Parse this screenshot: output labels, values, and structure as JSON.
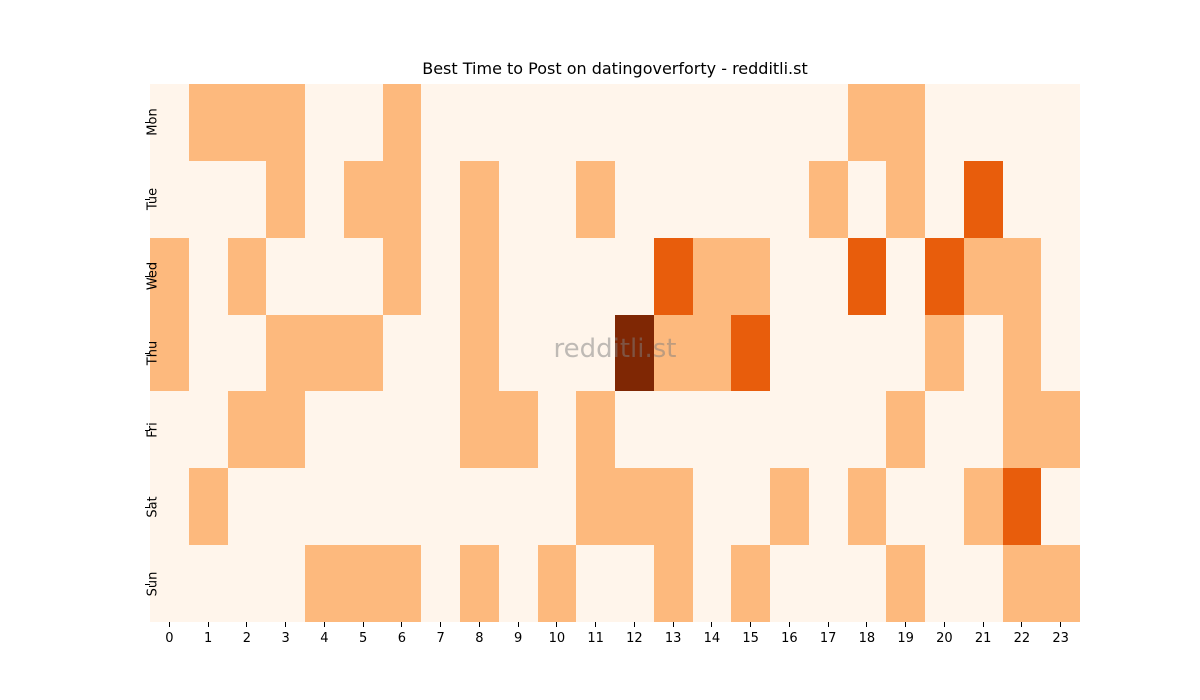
{
  "chart_data": {
    "type": "heatmap",
    "title": "Best Time to Post on datingoverforty - redditli.st",
    "xlabel": "",
    "ylabel": "",
    "x": [
      "0",
      "1",
      "2",
      "3",
      "4",
      "5",
      "6",
      "7",
      "8",
      "9",
      "10",
      "11",
      "12",
      "13",
      "14",
      "15",
      "16",
      "17",
      "18",
      "19",
      "20",
      "21",
      "22",
      "23"
    ],
    "y": [
      "Mon",
      "Tue",
      "Wed",
      "Thu",
      "Fri",
      "Sat",
      "Sun"
    ],
    "colormap": "Oranges",
    "levels": {
      "0": "#fff5eb",
      "1": "#fdb97d",
      "2": "#e85d0c",
      "3": "#7f2704"
    },
    "values": [
      [
        0,
        1,
        1,
        1,
        0,
        0,
        1,
        0,
        0,
        0,
        0,
        0,
        0,
        0,
        0,
        0,
        0,
        0,
        1,
        1,
        0,
        0,
        0,
        0
      ],
      [
        0,
        0,
        0,
        1,
        0,
        1,
        1,
        0,
        1,
        0,
        0,
        1,
        0,
        0,
        0,
        0,
        0,
        1,
        0,
        1,
        0,
        2,
        0,
        0
      ],
      [
        1,
        0,
        1,
        0,
        0,
        0,
        1,
        0,
        1,
        0,
        0,
        0,
        0,
        2,
        1,
        1,
        0,
        0,
        2,
        0,
        2,
        1,
        1,
        0
      ],
      [
        1,
        0,
        0,
        1,
        1,
        1,
        0,
        0,
        1,
        0,
        0,
        0,
        3,
        1,
        1,
        2,
        0,
        0,
        0,
        0,
        1,
        0,
        1,
        0
      ],
      [
        0,
        0,
        1,
        1,
        0,
        0,
        0,
        0,
        1,
        1,
        0,
        1,
        0,
        0,
        0,
        0,
        0,
        0,
        0,
        1,
        0,
        0,
        1,
        1
      ],
      [
        0,
        1,
        0,
        0,
        0,
        0,
        0,
        0,
        0,
        0,
        0,
        1,
        1,
        1,
        0,
        0,
        1,
        0,
        1,
        0,
        0,
        1,
        2,
        0
      ],
      [
        0,
        0,
        0,
        0,
        1,
        1,
        1,
        0,
        1,
        0,
        1,
        0,
        0,
        1,
        0,
        1,
        0,
        0,
        0,
        1,
        0,
        0,
        1,
        1
      ]
    ],
    "colorbar": false,
    "watermark": "redditli.st"
  },
  "title": "Best Time to Post on datingoverforty - redditli.st",
  "watermark": "redditli.st"
}
